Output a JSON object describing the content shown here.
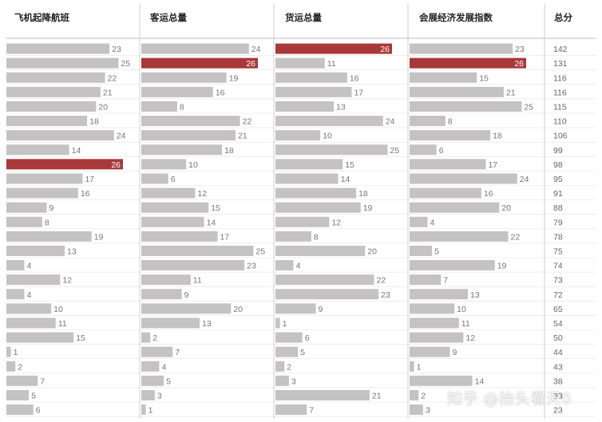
{
  "chart_data": {
    "type": "bar",
    "orientation": "horizontal",
    "panels": [
      {
        "name": "飞机起降航班",
        "values": [
          23,
          25,
          22,
          21,
          20,
          18,
          24,
          14,
          26,
          17,
          16,
          9,
          8,
          19,
          13,
          4,
          12,
          4,
          10,
          11,
          15,
          1,
          2,
          7,
          5,
          6
        ]
      },
      {
        "name": "客运总量",
        "values": [
          24,
          26,
          19,
          16,
          8,
          22,
          21,
          18,
          10,
          6,
          12,
          15,
          14,
          17,
          25,
          23,
          11,
          9,
          20,
          13,
          2,
          7,
          4,
          5,
          3,
          1
        ]
      },
      {
        "name": "货运总量",
        "values": [
          26,
          11,
          16,
          17,
          13,
          24,
          10,
          25,
          15,
          14,
          18,
          19,
          12,
          8,
          20,
          4,
          22,
          23,
          9,
          1,
          6,
          5,
          2,
          3,
          21,
          7
        ]
      },
      {
        "name": "会展经济发展指数",
        "values": [
          23,
          26,
          15,
          21,
          25,
          8,
          18,
          6,
          17,
          24,
          16,
          20,
          4,
          22,
          5,
          19,
          7,
          13,
          10,
          11,
          12,
          9,
          1,
          14,
          2,
          3
        ]
      }
    ],
    "total_header": "总分",
    "totals": [
      142,
      131,
      116,
      116,
      115,
      110,
      106,
      99,
      98,
      95,
      91,
      88,
      79,
      78,
      75,
      74,
      73,
      72,
      65,
      54,
      50,
      44,
      43,
      38,
      33,
      23
    ],
    "xlim": [
      0,
      26
    ],
    "highlight_value": 26,
    "colors": {
      "bar": "#c4c2c2",
      "highlight": "#a8393a",
      "divider": "#cfcfcf",
      "row_line": "#e3e3e3"
    }
  },
  "watermark": "知乎 @抬头看天0"
}
